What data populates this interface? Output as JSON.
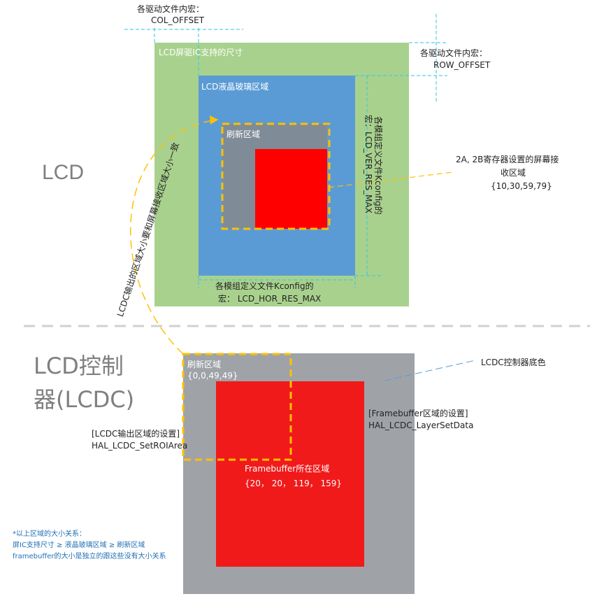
{
  "top_section": {
    "label": "LCD",
    "col_offset": {
      "line1": "各驱动文件内宏：",
      "line2": "COL_OFFSET"
    },
    "row_offset": {
      "line1": "各驱动文件内宏：",
      "line2": "ROW_OFFSET"
    },
    "ic_area_label": "LCD屏驱IC支持的尺寸",
    "glass_area_label": "LCD液晶玻璃区域",
    "refresh_area_label": "刷新区域",
    "ver_res": {
      "line1": "各模组定义文件Kconfig的",
      "line2": "宏：LCD_VER_RES_MAX"
    },
    "hor_res": {
      "line1": "各模组定义文件Kconfig的",
      "line2": "宏：  LCD_HOR_RES_MAX"
    },
    "receive_area": {
      "line1": "2A, 2B寄存器设置的屏幕接",
      "line2": "收区域",
      "line3": "{10,30,59,79}"
    },
    "consistency_note": "LCDC输出的区域大小要和屏幕接收区域大小一致"
  },
  "bottom_section": {
    "label_line1": "LCD控制",
    "label_line2": "器(LCDC)",
    "refresh_area": {
      "label": "刷新区域",
      "coords": "{0,0,49,49}"
    },
    "bg_color_label": "LCDC控制器底色",
    "framebuffer_setting": {
      "line1": "[Framebuffer区域的设置]",
      "line2": "HAL_LCDC_LayerSetData"
    },
    "output_setting": {
      "line1": "[LCDC输出区域的设置]",
      "line2": "HAL_LCDC_SetROIArea"
    },
    "framebuffer_area": {
      "label": "Framebuffer所在区域",
      "coords": "{20，  20，  119，  159}"
    }
  },
  "footnote": {
    "line1": "*以上区域的大小关系：",
    "line2": "屏IC支持尺寸 ≥ 液晶玻璃区域 ≥ 刷新区域",
    "line3": "framebuffer的大小是独立的跟这些没有大小关系"
  },
  "colors": {
    "ic_area": "#a9d18e",
    "glass_area": "#5b9bd5",
    "refresh_gray": "#7f8b96",
    "red": "#ff0000",
    "lcdc_gray": "#9fa3a8",
    "framebuffer_red": "#f11a1a",
    "dashed_orange": "#ffc000",
    "cyan_guide": "#2ec6e0",
    "footnote_blue": "#1f6fb5"
  }
}
